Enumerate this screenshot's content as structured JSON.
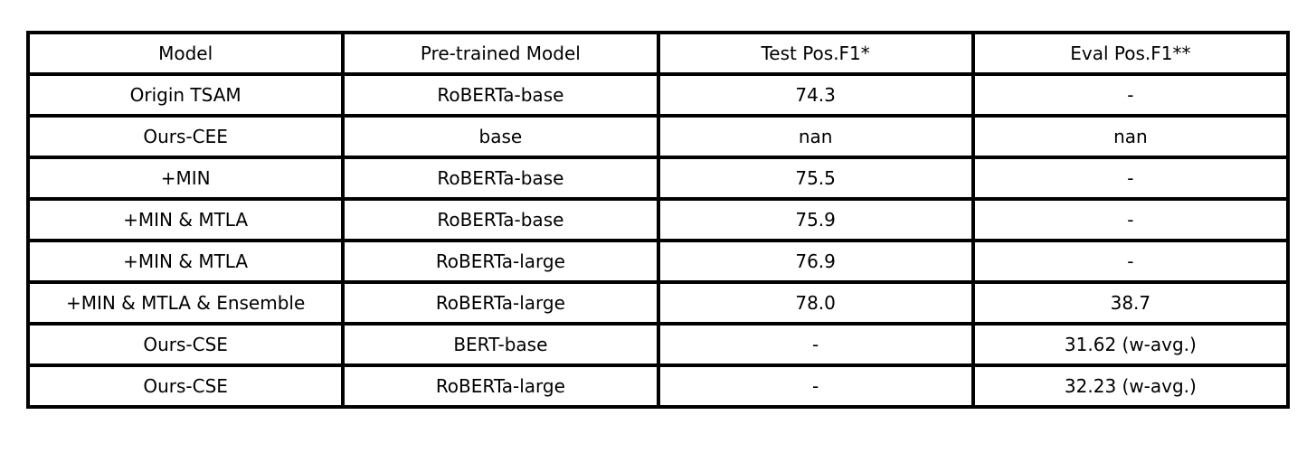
{
  "table": {
    "headers": [
      "Model",
      "Pre-trained Model",
      "Test Pos.F1*",
      "Eval Pos.F1**"
    ],
    "rows": [
      [
        "Origin TSAM",
        "RoBERTa-base",
        "74.3",
        "-"
      ],
      [
        "Ours-CEE",
        "base",
        "nan",
        "nan"
      ],
      [
        "+MIN",
        "RoBERTa-base",
        "75.5",
        "-"
      ],
      [
        "+MIN & MTLA",
        "RoBERTa-base",
        "75.9",
        "-"
      ],
      [
        "+MIN & MTLA",
        "RoBERTa-large",
        "76.9",
        "-"
      ],
      [
        "+MIN & MTLA & Ensemble",
        "RoBERTa-large",
        "78.0",
        "38.7"
      ],
      [
        "Ours-CSE",
        "BERT-base",
        "-",
        "31.62 (w-avg.)"
      ],
      [
        "Ours-CSE",
        "RoBERTa-large",
        "-",
        "32.23 (w-avg.)"
      ]
    ]
  }
}
